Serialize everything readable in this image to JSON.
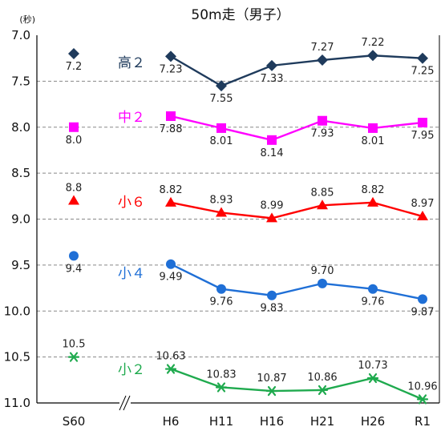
{
  "chart_data": {
    "type": "line",
    "title": "50m走（男子）",
    "unit_label": "(秒)",
    "ylim": [
      7.0,
      11.0
    ],
    "y_reversed": true,
    "y_ticks": [
      "7.0",
      "7.5",
      "8.0",
      "8.5",
      "9.0",
      "9.5",
      "10.0",
      "10.5",
      "11.0"
    ],
    "categories": [
      "S60",
      "H6",
      "H11",
      "H16",
      "H21",
      "H26",
      "R1"
    ],
    "axis_break_after": "S60",
    "grid": "dashed horizontal",
    "series": [
      {
        "name": "高２",
        "color": "#1F3B5C",
        "marker": "diamond",
        "values": [
          7.2,
          7.23,
          7.55,
          7.33,
          7.27,
          7.22,
          7.25
        ],
        "labels": [
          "7.2",
          "7.23",
          "7.55",
          "7.33",
          "7.27",
          "7.22",
          "7.25"
        ]
      },
      {
        "name": "中２",
        "color": "#FF00FF",
        "marker": "square",
        "values": [
          8.0,
          7.88,
          8.01,
          8.14,
          7.93,
          8.01,
          7.95
        ],
        "labels": [
          "8.0",
          "7.88",
          "8.01",
          "8.14",
          "7.93",
          "8.01",
          "7.95"
        ]
      },
      {
        "name": "小６",
        "color": "#FF0000",
        "marker": "triangle",
        "values": [
          8.8,
          8.82,
          8.93,
          8.99,
          8.85,
          8.82,
          8.97
        ],
        "labels": [
          "8.8",
          "8.82",
          "8.93",
          "8.99",
          "8.85",
          "8.82",
          "8.97"
        ]
      },
      {
        "name": "小４",
        "color": "#1F6FD6",
        "marker": "circle",
        "values": [
          9.4,
          9.49,
          9.76,
          9.83,
          9.7,
          9.76,
          9.87
        ],
        "labels": [
          "9.4",
          "9.49",
          "9.76",
          "9.83",
          "9.70",
          "9.76",
          "9.87"
        ]
      },
      {
        "name": "小２",
        "color": "#1FAA4E",
        "marker": "star",
        "values": [
          10.5,
          10.63,
          10.83,
          10.87,
          10.86,
          10.73,
          10.96
        ],
        "labels": [
          "10.5",
          "10.63",
          "10.83",
          "10.87",
          "10.86",
          "10.73",
          "10.96"
        ]
      }
    ]
  }
}
